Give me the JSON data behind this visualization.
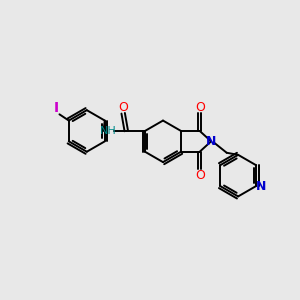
{
  "bg_color": "#e8e8e8",
  "bond_color": "#000000",
  "n_color": "#0000cd",
  "o_color": "#ff0000",
  "i_color": "#cc00cc",
  "nh_color": "#008b8b",
  "lw": 1.4,
  "dbl_off": 0.055,
  "ring_r": 0.48,
  "xlim": [
    -3.8,
    3.0
  ],
  "ylim": [
    -2.2,
    2.4
  ]
}
